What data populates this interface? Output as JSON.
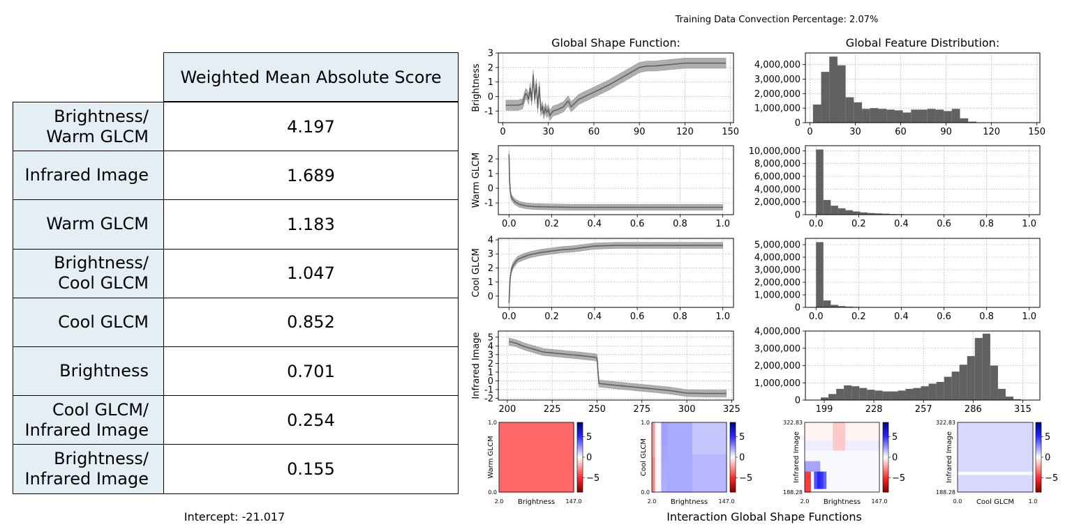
{
  "title": "Training Data Convection Percentage: 2.07%",
  "table": {
    "header": "Weighted Mean Absolute Score",
    "rows": [
      {
        "label": [
          "Brightness/",
          "Warm GLCM"
        ],
        "value": "4.197"
      },
      {
        "label": [
          "Infrared Image"
        ],
        "value": "1.689"
      },
      {
        "label": [
          "Warm GLCM"
        ],
        "value": "1.183"
      },
      {
        "label": [
          "Brightness/",
          "Cool GLCM"
        ],
        "value": "1.047"
      },
      {
        "label": [
          "Cool GLCM"
        ],
        "value": "0.852"
      },
      {
        "label": [
          "Brightness"
        ],
        "value": "0.701"
      },
      {
        "label": [
          "Cool GLCM/",
          "Infrared Image"
        ],
        "value": "0.254"
      },
      {
        "label": [
          "Brightness/",
          "Infrared Image"
        ],
        "value": "0.155"
      }
    ]
  },
  "intercept": "Intercept: -21.017",
  "chart_data": [
    {
      "type": "line",
      "panel": "shape",
      "column_title": "Global Shape Function:",
      "ylabel": "Brightness",
      "xlim": [
        -3,
        152
      ],
      "ylim": [
        -1.8,
        3
      ],
      "xticks": [
        0,
        30,
        60,
        90,
        120,
        150
      ],
      "xtick_labels": [
        "0",
        "30",
        "60",
        "90",
        "120",
        "150"
      ],
      "yticks": [
        -1,
        0,
        1,
        2,
        3
      ],
      "ytick_labels": [
        "-1",
        "0",
        "1",
        "2",
        "3"
      ],
      "grid": true,
      "series": [
        {
          "x": [
            2,
            5,
            10,
            13,
            15,
            16,
            17,
            18,
            19,
            20,
            21,
            22,
            23,
            24,
            25,
            26,
            27,
            28,
            29,
            30,
            31,
            33,
            36,
            40,
            43,
            45,
            50,
            60,
            70,
            80,
            90,
            95,
            100,
            110,
            120,
            130,
            140,
            147
          ],
          "y": [
            -0.6,
            -0.6,
            -0.6,
            -0.5,
            0.2,
            0.1,
            -0.2,
            0.6,
            -0.3,
            1.5,
            -0.2,
            0.9,
            -0.8,
            0.7,
            -1.0,
            -0.7,
            -1.2,
            -0.8,
            -1.1,
            -0.9,
            -1.3,
            -1.0,
            -0.9,
            -0.7,
            -0.3,
            -0.7,
            -0.2,
            0.3,
            0.8,
            1.4,
            2.0,
            2.1,
            2.1,
            2.2,
            2.3,
            2.3,
            2.3,
            2.3
          ]
        }
      ],
      "band": 0.35
    },
    {
      "type": "bar",
      "panel": "dist",
      "column_title": "Global Feature Distribution:",
      "xlim": [
        -3,
        152
      ],
      "ylim": [
        0,
        4800000
      ],
      "xticks": [
        0,
        30,
        60,
        90,
        120,
        150
      ],
      "xtick_labels": [
        "0",
        "30",
        "60",
        "90",
        "120",
        "150"
      ],
      "yticks": [
        0,
        1000000,
        2000000,
        3000000,
        4000000
      ],
      "ytick_labels": [
        "0",
        "1,000,000",
        "2,000,000",
        "3,000,000",
        "4,000,000"
      ],
      "bin_start": 2,
      "bin_width": 5.4,
      "values": [
        1250000,
        3500000,
        4550000,
        3950000,
        1750000,
        1400000,
        950000,
        1000000,
        950000,
        900000,
        850000,
        700000,
        900000,
        900000,
        950000,
        900000,
        800000,
        950000,
        300000,
        70000,
        10000,
        5000,
        0,
        0,
        0,
        0,
        0
      ]
    },
    {
      "type": "line",
      "panel": "shape",
      "ylabel": "Warm GLCM",
      "xlim": [
        -0.05,
        1.05
      ],
      "ylim": [
        -1.8,
        2.9
      ],
      "xticks": [
        0,
        0.2,
        0.4,
        0.6,
        0.8,
        1.0
      ],
      "xtick_labels": [
        "0.0",
        "0.2",
        "0.4",
        "0.6",
        "0.8",
        "1.0"
      ],
      "yticks": [
        -1,
        0,
        1,
        2
      ],
      "ytick_labels": [
        "-1",
        "0",
        "1",
        "2"
      ],
      "grid": true,
      "series": [
        {
          "x": [
            0,
            0.003,
            0.006,
            0.01,
            0.02,
            0.03,
            0.05,
            0.08,
            0.12,
            0.2,
            0.3,
            0.5,
            0.7,
            1.0
          ],
          "y": [
            2.3,
            0.5,
            -0.2,
            -0.6,
            -0.8,
            -0.95,
            -1.1,
            -1.2,
            -1.25,
            -1.28,
            -1.3,
            -1.3,
            -1.3,
            -1.3
          ]
        }
      ],
      "band": 0.2
    },
    {
      "type": "bar",
      "panel": "dist",
      "xlim": [
        -0.05,
        1.05
      ],
      "ylim": [
        0,
        10800000
      ],
      "xticks": [
        0,
        0.2,
        0.4,
        0.6,
        0.8,
        1.0
      ],
      "xtick_labels": [
        "0.0",
        "0.2",
        "0.4",
        "0.6",
        "0.8",
        "1.0"
      ],
      "yticks": [
        0,
        2000000,
        4000000,
        6000000,
        8000000,
        10000000
      ],
      "ytick_labels": [
        "0",
        "2,000,000",
        "4,000,000",
        "6,000,000",
        "8,000,000",
        "10,000,000"
      ],
      "bin_start": 0,
      "bin_width": 0.0345,
      "values": [
        10200000,
        2300000,
        1400000,
        1000000,
        700000,
        500000,
        350000,
        250000,
        200000,
        150000,
        100000,
        80000,
        60000,
        50000,
        40000,
        30000,
        20000,
        15000,
        10000,
        8000,
        5000,
        3000,
        2000,
        1000,
        1000,
        500,
        500,
        300,
        200
      ]
    },
    {
      "type": "line",
      "panel": "shape",
      "ylabel": "Cool GLCM",
      "xlim": [
        -0.05,
        1.05
      ],
      "ylim": [
        -0.8,
        4.1
      ],
      "xticks": [
        0,
        0.2,
        0.4,
        0.6,
        0.8,
        1.0
      ],
      "xtick_labels": [
        "0.0",
        "0.2",
        "0.4",
        "0.6",
        "0.8",
        "1.0"
      ],
      "yticks": [
        0,
        1,
        2,
        3,
        4
      ],
      "ytick_labels": [
        "0",
        "1",
        "2",
        "3",
        "4"
      ],
      "grid": true,
      "series": [
        {
          "x": [
            0,
            0.005,
            0.01,
            0.02,
            0.04,
            0.07,
            0.1,
            0.15,
            0.2,
            0.25,
            0.3,
            0.35,
            0.4,
            0.5,
            0.6,
            0.8,
            1.0
          ],
          "y": [
            -0.5,
            1.2,
            1.8,
            2.2,
            2.6,
            2.8,
            2.95,
            3.1,
            3.2,
            3.3,
            3.35,
            3.45,
            3.55,
            3.6,
            3.6,
            3.6,
            3.6
          ]
        }
      ],
      "band": 0.22
    },
    {
      "type": "bar",
      "panel": "dist",
      "xlim": [
        -0.05,
        1.05
      ],
      "ylim": [
        0,
        5500000
      ],
      "xticks": [
        0,
        0.2,
        0.4,
        0.6,
        0.8,
        1.0
      ],
      "xtick_labels": [
        "0.0",
        "0.2",
        "0.4",
        "0.6",
        "0.8",
        "1.0"
      ],
      "yticks": [
        0,
        1000000,
        2000000,
        3000000,
        4000000,
        5000000
      ],
      "ytick_labels": [
        "0",
        "1,000,000",
        "2,000,000",
        "3,000,000",
        "4,000,000",
        "5,000,000"
      ],
      "bin_start": 0,
      "bin_width": 0.0345,
      "values": [
        5200000,
        550000,
        200000,
        100000,
        60000,
        40000,
        30000,
        20000,
        15000,
        10000,
        8000,
        5000,
        4000,
        3000,
        2000,
        1000,
        1000,
        500,
        500,
        300,
        200,
        100,
        100,
        100,
        50,
        50,
        50,
        20,
        20
      ]
    },
    {
      "type": "line",
      "panel": "shape",
      "ylabel": "Infrared Image",
      "xlim": [
        195,
        326
      ],
      "ylim": [
        -2.2,
        5.7
      ],
      "xticks": [
        200,
        225,
        250,
        275,
        300,
        325
      ],
      "xtick_labels": [
        "200",
        "225",
        "250",
        "275",
        "300",
        "325"
      ],
      "yticks": [
        -2,
        -1,
        0,
        1,
        2,
        3,
        4,
        5
      ],
      "ytick_labels": [
        "-2",
        "-1",
        "0",
        "1",
        "2",
        "3",
        "4",
        "5"
      ],
      "grid": true,
      "series": [
        {
          "x": [
            201,
            205,
            210,
            215,
            220,
            230,
            240,
            249,
            250,
            251,
            260,
            270,
            280,
            290,
            300,
            310,
            322
          ],
          "y": [
            4.5,
            4.3,
            3.9,
            3.6,
            3.3,
            3.1,
            2.9,
            2.7,
            2.6,
            -0.3,
            -0.5,
            -0.7,
            -0.9,
            -1.1,
            -1.4,
            -1.45,
            -1.45
          ]
        }
      ],
      "band": 0.4
    },
    {
      "type": "bar",
      "panel": "dist",
      "xlim": [
        188,
        325
      ],
      "ylim": [
        0,
        4000000
      ],
      "xticks": [
        199,
        228,
        257,
        286,
        315
      ],
      "xtick_labels": [
        "199",
        "228",
        "257",
        "286",
        "315"
      ],
      "yticks": [
        0,
        1000000,
        2000000,
        3000000,
        4000000
      ],
      "ytick_labels": [
        "0",
        "1,000,000",
        "2,000,000",
        "3,000,000",
        "4,000,000"
      ],
      "bin_start": 197,
      "bin_width": 4.5,
      "values": [
        150000,
        350000,
        650000,
        850000,
        800000,
        700000,
        600000,
        550000,
        500000,
        500000,
        550000,
        650000,
        700000,
        800000,
        950000,
        1050000,
        1350000,
        1650000,
        2050000,
        2550000,
        3600000,
        3850000,
        2000000,
        650000,
        200000,
        50000,
        0,
        0,
        0
      ]
    },
    {
      "type": "heatmap",
      "panel": "interaction",
      "xlabel": "Brightness",
      "ylabel": "Warm GLCM",
      "x_tick_labels": [
        "2.0",
        "147.0"
      ],
      "y_tick_labels": [
        "0.0",
        "1.0"
      ],
      "pattern": "uniform-red",
      "colorbar_ticks": [
        "5",
        "0",
        "−5"
      ]
    },
    {
      "type": "heatmap",
      "panel": "interaction",
      "xlabel": "Brightness",
      "ylabel": "Cool GLCM",
      "x_tick_labels": [
        "2.0",
        "147.0"
      ],
      "y_tick_labels": [
        "0.0",
        "1.0"
      ],
      "pattern": "blue-red-edge",
      "colorbar_ticks": [
        "5",
        "0",
        "−5"
      ]
    },
    {
      "type": "heatmap",
      "panel": "interaction",
      "xlabel": "Brightness",
      "ylabel": "Infrared Image",
      "x_tick_labels": [
        "2.0",
        "147.0"
      ],
      "y_tick_labels": [
        "188.28",
        "322.83"
      ],
      "pattern": "mixed",
      "colorbar_ticks": [
        "5",
        "0",
        "−5"
      ]
    },
    {
      "type": "heatmap",
      "panel": "interaction",
      "xlabel": "Cool GLCM",
      "ylabel": "Infrared Image",
      "x_tick_labels": [
        "0.0",
        "1.0"
      ],
      "y_tick_labels": [
        "188.28",
        "322.83"
      ],
      "pattern": "light-blue",
      "colorbar_ticks": [
        "5",
        "0",
        "−5"
      ]
    }
  ],
  "interaction_title": "Interaction Global Shape Functions",
  "colors": {
    "header_bg": "#e4eff5",
    "line": "#616161",
    "band": "#a6a6a6",
    "bar": "#616161"
  }
}
